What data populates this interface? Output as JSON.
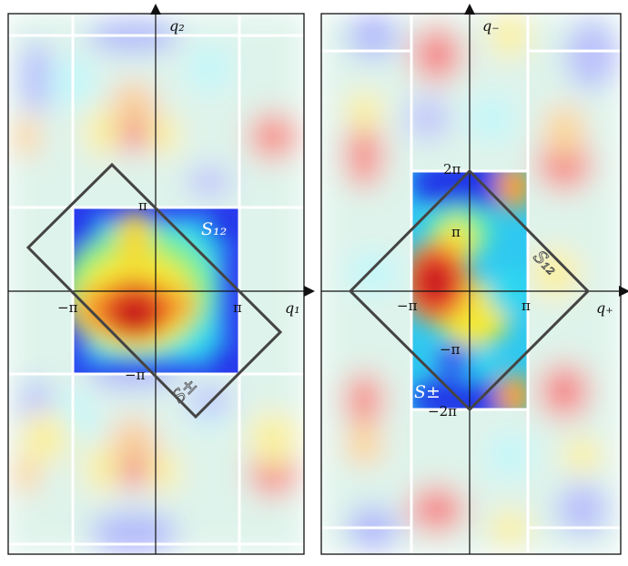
{
  "left_panel": {
    "x_axis_label": "q₁",
    "y_axis_label": "q₂",
    "ticks": {
      "neg_pi": "−π",
      "pi": "π",
      "pi_y": "π",
      "neg_pi_y": "−π"
    },
    "region_labels": {
      "s12": "S₁₂",
      "spm": "S±"
    }
  },
  "right_panel": {
    "x_axis_label": "q₊",
    "y_axis_label": "q₋",
    "ticks": {
      "neg_pi": "−π",
      "pi": "π",
      "two_pi": "2π",
      "pi_y": "π",
      "neg_pi_y": "−π",
      "neg_two_pi": "−2π"
    },
    "region_labels": {
      "s12": "S₁₂",
      "spm": "S±"
    }
  },
  "colors": {
    "outline": "#444444",
    "grid_line": "#ffffff"
  }
}
